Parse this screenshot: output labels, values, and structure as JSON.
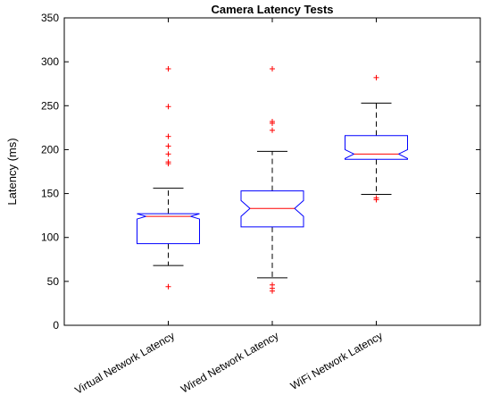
{
  "chart_data": {
    "type": "boxplot",
    "notched": true,
    "title": "Camera Latency Tests",
    "xlabel": "",
    "ylabel": "Latency (ms)",
    "ylim": [
      0,
      350
    ],
    "yticks": [
      0,
      50,
      100,
      150,
      200,
      250,
      300,
      350
    ],
    "ytick_labels": [
      "0",
      "50",
      "100",
      "150",
      "200",
      "250",
      "300",
      "350"
    ],
    "grid": false,
    "categories": [
      "Virtual Network Latency",
      "Wired Network Latency",
      "WiFi Network Latency"
    ],
    "boxes": [
      {
        "category": "Virtual Network Latency",
        "median": 124,
        "q1": 93,
        "q3": 127,
        "notch_low": 121,
        "notch_high": 127,
        "whisker_low": 68,
        "whisker_high": 156,
        "outliers": [
          44,
          184,
          186,
          195,
          204,
          215,
          249,
          292
        ]
      },
      {
        "category": "Wired Network Latency",
        "median": 133,
        "q1": 112,
        "q3": 153,
        "notch_low": 124,
        "notch_high": 142,
        "whisker_low": 54,
        "whisker_high": 198,
        "outliers": [
          39,
          42,
          46,
          222,
          230,
          232,
          292
        ]
      },
      {
        "category": "WiFi Network Latency",
        "median": 195,
        "q1": 189,
        "q3": 216,
        "notch_low": 190,
        "notch_high": 200,
        "whisker_low": 149,
        "whisker_high": 253,
        "outliers": [
          143,
          145,
          282
        ]
      }
    ],
    "colors": {
      "box": "#0000ff",
      "median": "#ff0000",
      "outlier": "#ff0000",
      "whisker": "#000000",
      "axis": "#000000"
    }
  }
}
